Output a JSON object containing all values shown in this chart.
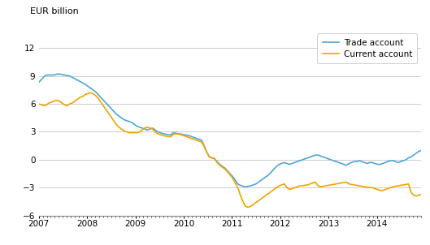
{
  "title": "EUR billion",
  "ylim": [
    -6,
    14
  ],
  "yticks": [
    -6,
    -3,
    0,
    3,
    6,
    9,
    12
  ],
  "xlim": [
    2007.0,
    2014.92
  ],
  "xticks": [
    2007,
    2008,
    2009,
    2010,
    2011,
    2012,
    2013,
    2014
  ],
  "trade_color": "#4da6d8",
  "current_color": "#f0a500",
  "background_color": "#ffffff",
  "grid_color": "#cccccc",
  "legend_labels": [
    "Trade account",
    "Current account"
  ],
  "trade_account": [
    8.3,
    8.6,
    8.9,
    9.1,
    9.1,
    9.1,
    9.1,
    9.2,
    9.2,
    9.15,
    9.1,
    9.05,
    9.0,
    8.85,
    8.7,
    8.55,
    8.4,
    8.25,
    8.1,
    7.9,
    7.7,
    7.5,
    7.3,
    7.0,
    6.7,
    6.4,
    6.1,
    5.8,
    5.5,
    5.2,
    4.9,
    4.7,
    4.5,
    4.3,
    4.2,
    4.1,
    4.0,
    3.8,
    3.6,
    3.5,
    3.4,
    3.3,
    3.2,
    3.3,
    3.4,
    3.2,
    3.0,
    2.9,
    2.8,
    2.75,
    2.7,
    2.65,
    2.9,
    2.85,
    2.8,
    2.75,
    2.7,
    2.65,
    2.6,
    2.5,
    2.4,
    2.3,
    2.2,
    2.1,
    1.5,
    0.8,
    0.3,
    0.2,
    0.1,
    -0.2,
    -0.5,
    -0.7,
    -0.9,
    -1.2,
    -1.5,
    -1.8,
    -2.2,
    -2.6,
    -2.75,
    -2.85,
    -2.9,
    -2.85,
    -2.8,
    -2.7,
    -2.6,
    -2.4,
    -2.2,
    -2.0,
    -1.8,
    -1.6,
    -1.3,
    -1.0,
    -0.7,
    -0.5,
    -0.4,
    -0.3,
    -0.4,
    -0.5,
    -0.4,
    -0.3,
    -0.2,
    -0.1,
    0.0,
    0.1,
    0.2,
    0.3,
    0.4,
    0.5,
    0.5,
    0.4,
    0.3,
    0.2,
    0.1,
    0.0,
    -0.1,
    -0.2,
    -0.3,
    -0.4,
    -0.5,
    -0.6,
    -0.4,
    -0.3,
    -0.2,
    -0.2,
    -0.1,
    -0.2,
    -0.3,
    -0.4,
    -0.3,
    -0.3,
    -0.4,
    -0.5,
    -0.5,
    -0.4,
    -0.3,
    -0.2,
    -0.1,
    -0.1,
    -0.2,
    -0.3,
    -0.2,
    -0.1,
    0.0,
    0.2,
    0.3,
    0.5,
    0.7,
    0.9,
    1.0
  ],
  "current_account": [
    6.0,
    5.9,
    5.8,
    5.9,
    6.1,
    6.2,
    6.3,
    6.4,
    6.3,
    6.1,
    5.9,
    5.8,
    6.0,
    6.1,
    6.3,
    6.5,
    6.7,
    6.8,
    7.0,
    7.1,
    7.2,
    7.1,
    6.9,
    6.6,
    6.2,
    5.8,
    5.4,
    5.0,
    4.6,
    4.2,
    3.8,
    3.5,
    3.3,
    3.1,
    3.0,
    2.9,
    2.9,
    2.9,
    2.9,
    3.0,
    3.2,
    3.4,
    3.5,
    3.4,
    3.3,
    3.0,
    2.8,
    2.7,
    2.6,
    2.55,
    2.5,
    2.45,
    2.7,
    2.8,
    2.75,
    2.7,
    2.6,
    2.5,
    2.4,
    2.3,
    2.2,
    2.1,
    2.0,
    1.9,
    1.4,
    0.8,
    0.3,
    0.2,
    0.15,
    -0.3,
    -0.6,
    -0.8,
    -1.0,
    -1.3,
    -1.6,
    -2.0,
    -2.5,
    -3.0,
    -3.8,
    -4.5,
    -5.0,
    -5.1,
    -5.0,
    -4.8,
    -4.6,
    -4.4,
    -4.2,
    -4.0,
    -3.8,
    -3.6,
    -3.4,
    -3.2,
    -3.0,
    -2.8,
    -2.7,
    -2.6,
    -3.0,
    -3.2,
    -3.1,
    -3.0,
    -2.9,
    -2.8,
    -2.8,
    -2.75,
    -2.7,
    -2.6,
    -2.5,
    -2.4,
    -2.8,
    -2.9,
    -2.85,
    -2.8,
    -2.75,
    -2.7,
    -2.65,
    -2.6,
    -2.55,
    -2.5,
    -2.45,
    -2.4,
    -2.6,
    -2.65,
    -2.7,
    -2.75,
    -2.8,
    -2.85,
    -2.9,
    -2.95,
    -3.0,
    -3.0,
    -3.1,
    -3.2,
    -3.3,
    -3.3,
    -3.2,
    -3.1,
    -3.0,
    -2.9,
    -2.85,
    -2.8,
    -2.75,
    -2.7,
    -2.65,
    -2.6,
    -3.5,
    -3.8,
    -3.9,
    -3.8,
    -3.7
  ]
}
